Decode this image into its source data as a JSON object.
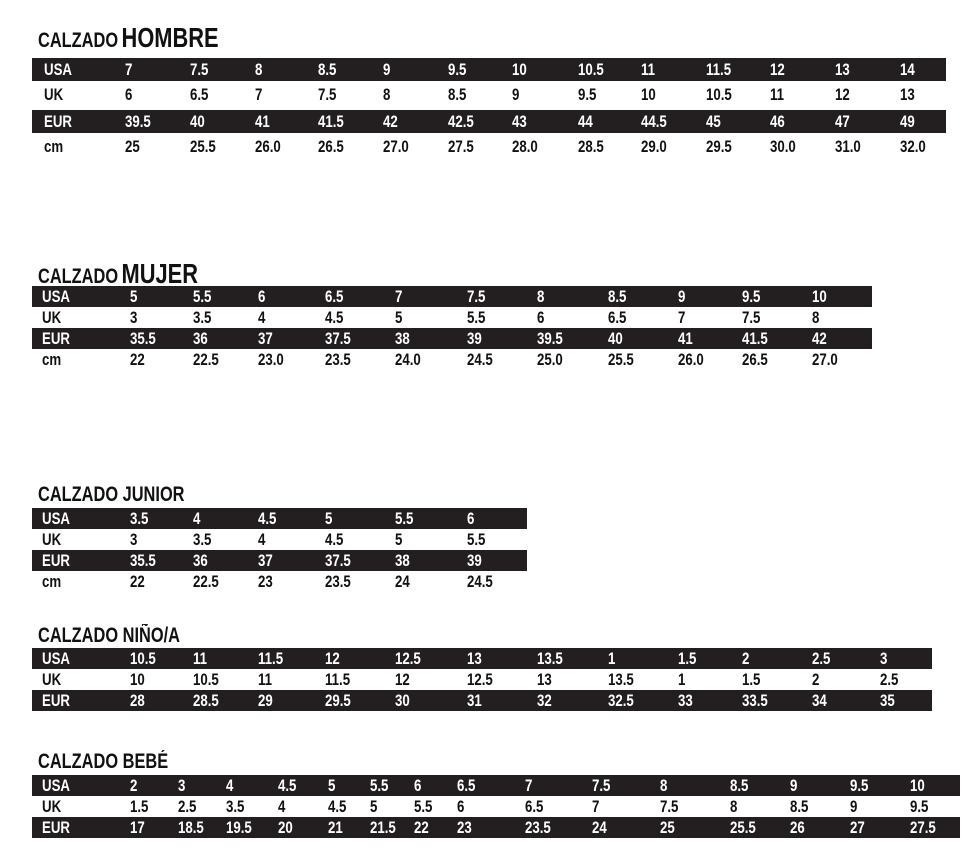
{
  "tables": [
    {
      "id": "hombre",
      "title_prefix": "CALZADO",
      "title_main": "HOMBRE",
      "rows": [
        {
          "label": "USA",
          "dark": true,
          "values": [
            "7",
            "7.5",
            "8",
            "8.5",
            "9",
            "9.5",
            "10",
            "10.5",
            "11",
            "11.5",
            "12",
            "13",
            "14"
          ]
        },
        {
          "label": "UK",
          "dark": false,
          "values": [
            "6",
            "6.5",
            "7",
            "7.5",
            "8",
            "8.5",
            "9",
            "9.5",
            "10",
            "10.5",
            "11",
            "12",
            "13"
          ]
        },
        {
          "label": "EUR",
          "dark": true,
          "values": [
            "39.5",
            "40",
            "41",
            "41.5",
            "42",
            "42.5",
            "43",
            "44",
            "44.5",
            "45",
            "46",
            "47",
            "49"
          ]
        },
        {
          "label": "cm",
          "dark": false,
          "values": [
            "25",
            "25.5",
            "26.0",
            "26.5",
            "27.0",
            "27.5",
            "28.0",
            "28.5",
            "29.0",
            "29.5",
            "30.0",
            "31.0",
            "32.0"
          ]
        }
      ]
    },
    {
      "id": "mujer",
      "title_prefix": "CALZADO",
      "title_main": "MUJER",
      "rows": [
        {
          "label": "USA",
          "dark": true,
          "values": [
            "5",
            "5.5",
            "6",
            "6.5",
            "7",
            "7.5",
            "8",
            "8.5",
            "9",
            "9.5",
            "10"
          ]
        },
        {
          "label": "UK",
          "dark": false,
          "values": [
            "3",
            "3.5",
            "4",
            "4.5",
            "5",
            "5.5",
            "6",
            "6.5",
            "7",
            "7.5",
            "8"
          ]
        },
        {
          "label": "EUR",
          "dark": true,
          "values": [
            "35.5",
            "36",
            "37",
            "37.5",
            "38",
            "39",
            "39.5",
            "40",
            "41",
            "41.5",
            "42"
          ]
        },
        {
          "label": "cm",
          "dark": false,
          "values": [
            "22",
            "22.5",
            "23.0",
            "23.5",
            "24.0",
            "24.5",
            "25.0",
            "25.5",
            "26.0",
            "26.5",
            "27.0"
          ]
        }
      ]
    },
    {
      "id": "junior",
      "title_prefix": "CALZADO JUNIOR",
      "title_main": "",
      "rows": [
        {
          "label": "USA",
          "dark": true,
          "values": [
            "3.5",
            "4",
            "4.5",
            "5",
            "5.5",
            "6"
          ]
        },
        {
          "label": "UK",
          "dark": false,
          "values": [
            "3",
            "3.5",
            "4",
            "4.5",
            "5",
            "5.5"
          ]
        },
        {
          "label": "EUR",
          "dark": true,
          "values": [
            "35.5",
            "36",
            "37",
            "37.5",
            "38",
            "39"
          ]
        },
        {
          "label": "cm",
          "dark": false,
          "values": [
            "22",
            "22.5",
            "23",
            "23.5",
            "24",
            "24.5"
          ]
        }
      ]
    },
    {
      "id": "nino",
      "title_prefix": "CALZADO NIÑO/A",
      "title_main": "",
      "rows": [
        {
          "label": "USA",
          "dark": true,
          "values": [
            "10.5",
            "11",
            "11.5",
            "12",
            "12.5",
            "13",
            "13.5",
            "1",
            "1.5",
            "2",
            "2.5",
            "3"
          ]
        },
        {
          "label": "UK",
          "dark": false,
          "values": [
            "10",
            "10.5",
            "11",
            "11.5",
            "12",
            "12.5",
            "13",
            "13.5",
            "1",
            "1.5",
            "2",
            "2.5"
          ]
        },
        {
          "label": "EUR",
          "dark": true,
          "values": [
            "28",
            "28.5",
            "29",
            "29.5",
            "30",
            "31",
            "32",
            "32.5",
            "33",
            "33.5",
            "34",
            "35"
          ]
        }
      ]
    },
    {
      "id": "bebe",
      "title_prefix": "CALZADO BEBÉ",
      "title_main": "",
      "rows": [
        {
          "label": "USA",
          "dark": true,
          "values": [
            "2",
            "3",
            "4",
            "4.5",
            "5",
            "5.5",
            "6",
            "6.5",
            "7",
            "7.5",
            "8",
            "8.5",
            "9",
            "9.5",
            "10"
          ]
        },
        {
          "label": "UK",
          "dark": false,
          "values": [
            "1.5",
            "2.5",
            "3.5",
            "4",
            "4.5",
            "5",
            "5.5",
            "6",
            "6.5",
            "7",
            "7.5",
            "8",
            "8.5",
            "9",
            "9.5"
          ]
        },
        {
          "label": "EUR",
          "dark": true,
          "values": [
            "17",
            "18.5",
            "19.5",
            "20",
            "21",
            "21.5",
            "22",
            "23",
            "23.5",
            "24",
            "25",
            "25.5",
            "26",
            "27",
            "27.5"
          ]
        }
      ]
    }
  ]
}
